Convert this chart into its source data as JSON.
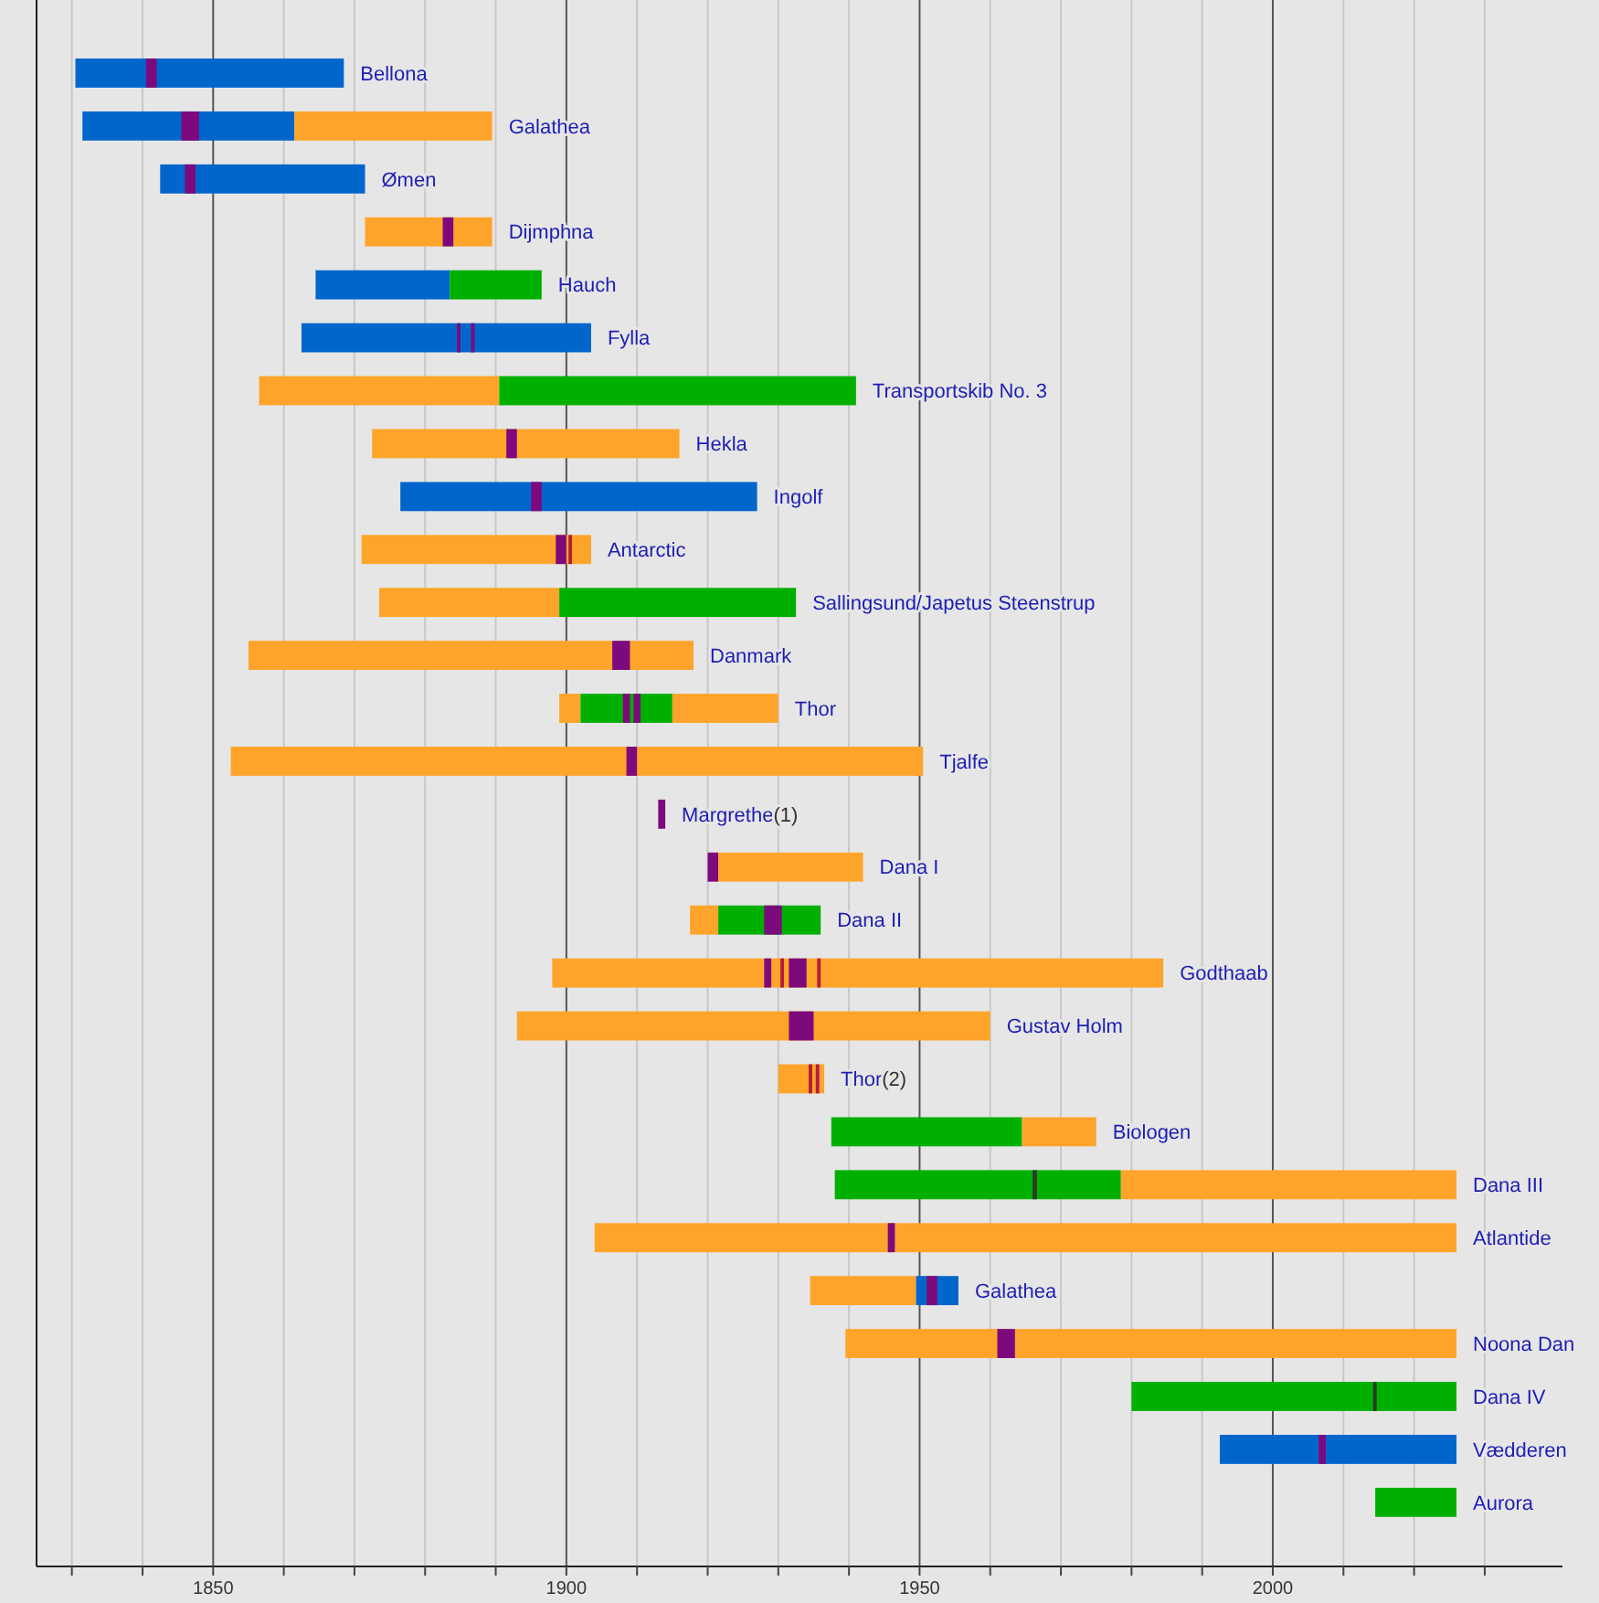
{
  "chart_data": {
    "type": "bar",
    "orientation": "horizontal",
    "grid": true,
    "categories": [
      "Bellona",
      "Galathea",
      "Ømen",
      "Dijmphna",
      "Hauch",
      "Fylla",
      "Transportskib No. 3",
      "Hekla",
      "Ingolf",
      "Antarctic",
      "Sallingsund/Japetus Steenstrup",
      "Danmark",
      "Thor",
      "Tjalfe",
      "Margrethe(1)",
      "Dana I",
      "Dana II",
      "Godthaab",
      "Gustav Holm",
      "Thor(2)",
      "Biologen",
      "Dana III",
      "Atlantide",
      "Galathea",
      "Noona Dan",
      "Dana IV",
      "Vædderen",
      "Aurora"
    ],
    "xlim": [
      1825,
      2041
    ],
    "xticks": [
      {
        "value": 1830,
        "label": null
      },
      {
        "value": 1840,
        "label": null
      },
      1850,
      {
        "value": 1860,
        "label": null
      },
      {
        "value": 1870,
        "label": null
      },
      {
        "value": 1880,
        "label": null
      },
      {
        "value": 1890,
        "label": null
      },
      1900,
      {
        "value": 1910,
        "label": null
      },
      {
        "value": 1920,
        "label": null
      },
      {
        "value": 1930,
        "label": null
      },
      {
        "value": 1940,
        "label": null
      },
      1950,
      {
        "value": 1960,
        "label": null
      },
      {
        "value": 1970,
        "label": null
      },
      {
        "value": 1980,
        "label": null
      },
      {
        "value": 1990,
        "label": null
      },
      2000,
      {
        "value": 2010,
        "label": null
      },
      {
        "value": 2020,
        "label": null
      },
      {
        "value": 2030,
        "label": null
      }
    ],
    "series": [
      {
        "base": [
          1830.5,
          1831.5,
          1842.5,
          1871.5,
          1864.5,
          1862.5,
          1856.5,
          1872.5,
          1876.5,
          1871,
          1873.5,
          1855,
          1899,
          1852.5,
          1913,
          1920,
          1917.5,
          1898,
          1893,
          1930,
          1937.5,
          1938,
          1904,
          1934.5,
          1939.5,
          1980,
          1992.5,
          2014.5
        ],
        "values": [
          38,
          30,
          29,
          18,
          19,
          41,
          34,
          43.5,
          50.5,
          32.5,
          25.5,
          63,
          3,
          98,
          1,
          1.5,
          4,
          86.5,
          67,
          6.5,
          27,
          40.5,
          122,
          15,
          86.5,
          46,
          33.5,
          11.5
        ],
        "colors": [
          "#0066cc",
          "#0066cc",
          "#0066cc",
          "#ffa42a",
          "#0066cc",
          "#0066cc",
          "#ffa42a",
          "#ffa42a",
          "#0066cc",
          "#ffa42a",
          "#ffa42a",
          "#ffa42a",
          "#ffa42a",
          "#ffa42a",
          "#7d0a7d",
          "#7d0a7d",
          "#ffa42a",
          "#ffa42a",
          "#ffa42a",
          "#ffa42a",
          "#00b000",
          "#00b000",
          "#ffa42a",
          "#ffa42a",
          "#ffa42a",
          "#00b000",
          "#0066cc",
          "#00b000"
        ]
      },
      {
        "base": [
          null,
          1861.5,
          null,
          null,
          1883.5,
          null,
          1890.5,
          null,
          null,
          null,
          1899,
          null,
          1902,
          null,
          null,
          1921.5,
          1921.5,
          null,
          null,
          null,
          1964.5,
          1978.5,
          null,
          1949.5,
          null,
          null,
          null,
          null
        ],
        "values": [
          null,
          28,
          null,
          null,
          13,
          null,
          50.5,
          null,
          null,
          null,
          33.5,
          null,
          13,
          null,
          null,
          20.5,
          14.5,
          null,
          null,
          null,
          10.5,
          47.5,
          null,
          6,
          null,
          null,
          null,
          null
        ],
        "colors": [
          null,
          "#ffa42a",
          null,
          null,
          "#00b000",
          null,
          "#00b000",
          null,
          null,
          null,
          "#00b000",
          null,
          "#00b000",
          null,
          null,
          "#ffa42a",
          "#00b000",
          null,
          null,
          null,
          "#ffa42a",
          "#ffa42a",
          null,
          "#0066cc",
          null,
          null,
          null,
          null
        ]
      },
      {
        "base": [
          null,
          null,
          null,
          null,
          null,
          null,
          null,
          null,
          null,
          null,
          null,
          null,
          1915,
          null,
          null,
          null,
          null,
          null,
          null,
          null,
          null,
          null,
          null,
          null,
          null,
          null,
          null,
          null
        ],
        "values": [
          null,
          null,
          null,
          null,
          null,
          null,
          null,
          null,
          null,
          null,
          null,
          null,
          15,
          null,
          null,
          null,
          null,
          null,
          null,
          null,
          null,
          null,
          null,
          null,
          null,
          null,
          null,
          null
        ],
        "colors": [
          null,
          null,
          null,
          null,
          null,
          null,
          null,
          null,
          null,
          null,
          null,
          null,
          "#ffa42a",
          null,
          null,
          null,
          null,
          null,
          null,
          null,
          null,
          null,
          null,
          null,
          null,
          null,
          null,
          null
        ]
      },
      {
        "base": [
          1840.5,
          1845.5,
          1846,
          1882.5,
          null,
          1884.5,
          null,
          1891.5,
          1895,
          1898.5,
          null,
          1906.5,
          1908,
          1908.5,
          null,
          null,
          1928,
          1928,
          1931.5,
          1934.3,
          null,
          1966,
          1945.5,
          1951,
          1961,
          2014.2,
          2006.5,
          null
        ],
        "values": [
          1.5,
          2.5,
          1.5,
          1.5,
          null,
          0.5,
          null,
          1.5,
          1.5,
          1.5,
          null,
          2.5,
          1,
          1.5,
          null,
          null,
          2.5,
          1,
          3.5,
          0.5,
          null,
          0.6,
          1,
          1.5,
          2.5,
          0.5,
          1,
          null
        ],
        "colors": [
          "#7d0a7d",
          "#7d0a7d",
          "#7d0a7d",
          "#7d0a7d",
          null,
          "#7d0a7d",
          null,
          "#7d0a7d",
          "#7d0a7d",
          "#7d0a7d",
          null,
          "#7d0a7d",
          "#7d0a7d",
          "#7d0a7d",
          null,
          null,
          "#7d0a7d",
          "#7d0a7d",
          "#7d0a7d",
          "#b41e3c",
          null,
          "#2b3a2b",
          "#7d0a7d",
          "#7d0a7d",
          "#7d0a7d",
          "#2b3a2b",
          "#7d0a7d",
          null
        ]
      },
      {
        "base": [
          null,
          null,
          null,
          null,
          null,
          1886.5,
          null,
          null,
          null,
          1900.3,
          null,
          null,
          1909.5,
          null,
          null,
          null,
          null,
          1930.3,
          null,
          1935.3,
          null,
          null,
          null,
          null,
          null,
          null,
          null,
          null
        ],
        "values": [
          null,
          null,
          null,
          null,
          null,
          0.5,
          null,
          null,
          null,
          0.5,
          null,
          null,
          1,
          null,
          null,
          null,
          null,
          0.5,
          null,
          0.5,
          null,
          null,
          null,
          null,
          null,
          null,
          null,
          null
        ],
        "colors": [
          null,
          null,
          null,
          null,
          null,
          "#7d0a7d",
          null,
          null,
          null,
          "#b41e3c",
          null,
          null,
          "#7d0a7d",
          null,
          null,
          null,
          null,
          "#b41e3c",
          null,
          "#b41e3c",
          null,
          null,
          null,
          null,
          null,
          null,
          null,
          null
        ]
      },
      {
        "base": [
          null,
          null,
          null,
          null,
          null,
          null,
          null,
          null,
          null,
          null,
          null,
          null,
          null,
          null,
          null,
          null,
          null,
          1931.5,
          null,
          null,
          null,
          null,
          null,
          null,
          null,
          null,
          null,
          null
        ],
        "values": [
          null,
          null,
          null,
          null,
          null,
          null,
          null,
          null,
          null,
          null,
          null,
          null,
          null,
          null,
          null,
          null,
          null,
          2.5,
          null,
          null,
          null,
          null,
          null,
          null,
          null,
          null,
          null,
          null
        ],
        "colors": [
          null,
          null,
          null,
          null,
          null,
          null,
          null,
          null,
          null,
          null,
          null,
          null,
          null,
          null,
          null,
          null,
          null,
          "#7d0a7d",
          null,
          null,
          null,
          null,
          null,
          null,
          null,
          null,
          null,
          null
        ]
      },
      {
        "base": [
          null,
          null,
          null,
          null,
          null,
          null,
          null,
          null,
          null,
          null,
          null,
          null,
          null,
          null,
          null,
          null,
          null,
          1935.5,
          null,
          null,
          null,
          null,
          null,
          null,
          null,
          null,
          null,
          null
        ],
        "values": [
          null,
          null,
          null,
          null,
          null,
          null,
          null,
          null,
          null,
          null,
          null,
          null,
          null,
          null,
          null,
          null,
          null,
          0.5,
          null,
          null,
          null,
          null,
          null,
          null,
          null,
          null,
          null,
          null
        ],
        "colors": [
          null,
          null,
          null,
          null,
          null,
          null,
          null,
          null,
          null,
          null,
          null,
          null,
          null,
          null,
          null,
          null,
          null,
          "#b41e3c",
          null,
          null,
          null,
          null,
          null,
          null,
          null,
          null,
          null,
          null
        ]
      }
    ]
  }
}
